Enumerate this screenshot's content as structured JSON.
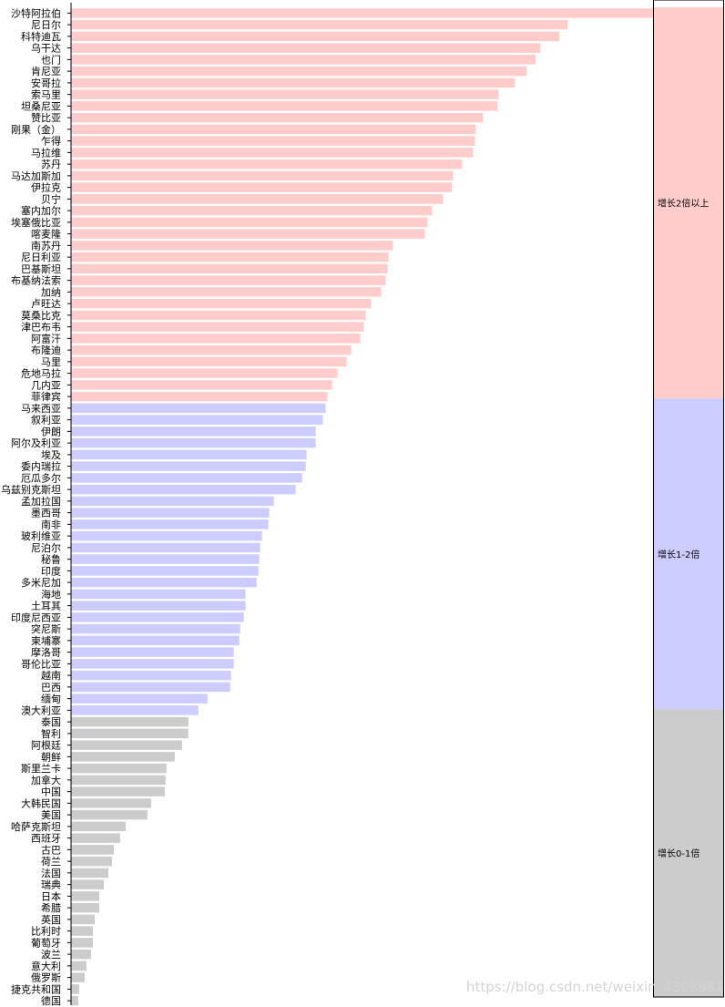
{
  "chart_data": {
    "type": "bar",
    "orientation": "horizontal",
    "title": "",
    "xlabel": "",
    "ylabel": "",
    "categories": [
      "沙特阿拉伯",
      "尼日尔",
      "科特迪瓦",
      "乌干达",
      "也门",
      "肯尼亚",
      "安哥拉",
      "索马里",
      "坦桑尼亚",
      "赞比亚",
      "刚果（金）",
      "乍得",
      "马拉维",
      "苏丹",
      "马达加斯加",
      "伊拉克",
      "贝宁",
      "塞内加尔",
      "埃塞俄比亚",
      "喀麦隆",
      "南苏丹",
      "尼日利亚",
      "巴基斯坦",
      "布基纳法索",
      "加纳",
      "卢旺达",
      "莫桑比克",
      "津巴布韦",
      "阿富汗",
      "布隆迪",
      "马里",
      "危地马拉",
      "几内亚",
      "菲律宾",
      "马来西亚",
      "叙利亚",
      "伊朗",
      "阿尔及利亚",
      "埃及",
      "委内瑞拉",
      "厄瓜多尔",
      "乌兹别克斯坦",
      "孟加拉国",
      "墨西哥",
      "南非",
      "玻利维亚",
      "尼泊尔",
      "秘鲁",
      "印度",
      "多米尼加",
      "海地",
      "土耳其",
      "印度尼西亚",
      "突尼斯",
      "柬埔寨",
      "摩洛哥",
      "哥伦比亚",
      "越南",
      "巴西",
      "缅甸",
      "澳大利亚",
      "泰国",
      "智利",
      "阿根廷",
      "朝鲜",
      "斯里兰卡",
      "加拿大",
      "中国",
      "大韩民国",
      "美国",
      "哈萨克斯坦",
      "西班牙",
      "古巴",
      "荷兰",
      "法国",
      "瑞典",
      "日本",
      "希腊",
      "英国",
      "比利时",
      "葡萄牙",
      "波兰",
      "意大利",
      "俄罗斯",
      "捷克共和国",
      "德国"
    ],
    "values": [
      640,
      546,
      537,
      516,
      511,
      501,
      488,
      470,
      469,
      453,
      445,
      444,
      442,
      430,
      420,
      419,
      409,
      397,
      392,
      389,
      354,
      349,
      348,
      346,
      341,
      330,
      324,
      322,
      318,
      308,
      303,
      293,
      287,
      282,
      280,
      277,
      269,
      269,
      259,
      258,
      254,
      247,
      223,
      218,
      217,
      210,
      208,
      207,
      206,
      204,
      192,
      192,
      190,
      186,
      185,
      179,
      179,
      176,
      175,
      150,
      140,
      129,
      129,
      122,
      114,
      105,
      104,
      103,
      88,
      84,
      60,
      54,
      47,
      45,
      41,
      36,
      31,
      31,
      26,
      24,
      24,
      22,
      17,
      15,
      9,
      8
    ],
    "xlim": [
      0,
      640
    ],
    "grid": false,
    "legend": "none",
    "groups": [
      {
        "label": "增长2倍以上",
        "color": "#ffcccc",
        "start": 0,
        "count": 34
      },
      {
        "label": "增长1-2倍",
        "color": "#ccccff",
        "start": 34,
        "count": 27
      },
      {
        "label": "增长0-1倍",
        "color": "#cccccc",
        "start": 61,
        "count": 25
      }
    ]
  },
  "watermark": "https://blog.csdn.net/weixin_43089813"
}
